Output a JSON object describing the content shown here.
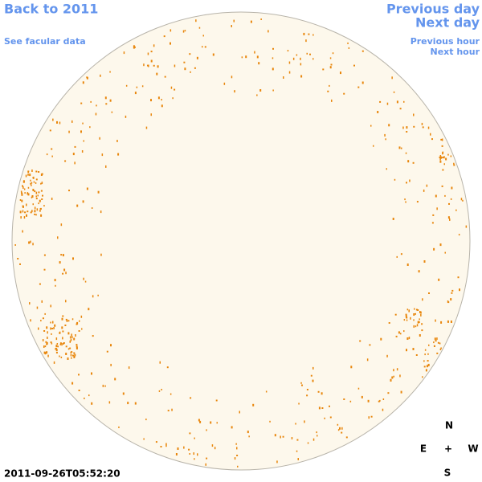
{
  "nav": {
    "back_year": "Back to 2011",
    "facular_data": "See facular data",
    "previous_day": "Previous day",
    "next_day": "Next day",
    "previous_hour": "Previous hour",
    "next_hour": "Next hour"
  },
  "timestamp": "2011-09-26T05:52:20",
  "compass": {
    "north": "N",
    "east": "E",
    "center": "+",
    "west": "W",
    "south": "S"
  }
}
